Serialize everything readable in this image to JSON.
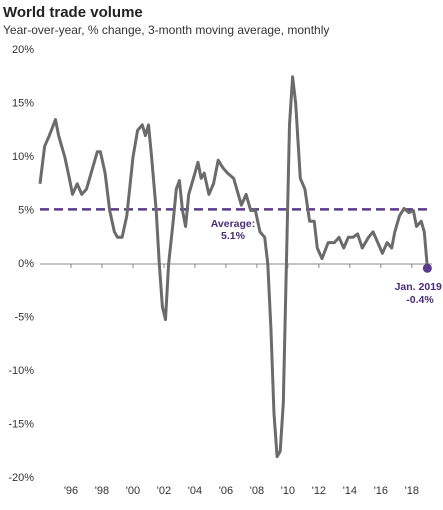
{
  "chart_data": {
    "type": "line",
    "title": "World trade volume",
    "subtitle": "Year-over-year, % change, 3-month moving average, monthly",
    "x": [
      1994.0,
      1994.3,
      1994.6,
      1995.0,
      1995.2,
      1995.6,
      1995.9,
      1996.1,
      1996.4,
      1996.7,
      1997.0,
      1997.4,
      1997.7,
      1997.9,
      1998.2,
      1998.5,
      1998.8,
      1999.0,
      1999.3,
      1999.6,
      2000.0,
      2000.3,
      2000.6,
      2000.8,
      2001.0,
      2001.2,
      2001.5,
      2001.7,
      2001.9,
      2002.1,
      2002.3,
      2002.6,
      2002.8,
      2003.0,
      2003.2,
      2003.4,
      2003.6,
      2003.9,
      2004.2,
      2004.4,
      2004.6,
      2004.9,
      2005.2,
      2005.5,
      2005.8,
      2006.1,
      2006.5,
      2006.8,
      2007.0,
      2007.3,
      2007.6,
      2007.9,
      2008.2,
      2008.5,
      2008.7,
      2008.9,
      2009.1,
      2009.3,
      2009.5,
      2009.7,
      2009.9,
      2010.1,
      2010.3,
      2010.5,
      2010.8,
      2011.1,
      2011.4,
      2011.7,
      2011.9,
      2012.2,
      2012.6,
      2013.0,
      2013.3,
      2013.6,
      2013.9,
      2014.2,
      2014.5,
      2014.8,
      2015.2,
      2015.5,
      2015.8,
      2016.1,
      2016.4,
      2016.7,
      2016.9,
      2017.2,
      2017.5,
      2017.8,
      2018.1,
      2018.3,
      2018.6,
      2018.8,
      2019.0
    ],
    "series": [
      {
        "color": "#6b6b6b",
        "values": [
          7.5,
          11,
          12,
          13.5,
          12,
          10,
          8,
          6.5,
          7.5,
          6.5,
          7,
          9,
          10.5,
          10.5,
          8.5,
          5,
          3,
          2.5,
          2.5,
          4.5,
          10,
          12.5,
          13,
          12,
          13,
          10,
          5,
          0,
          -4,
          -5.2,
          0,
          4,
          7,
          7.8,
          5,
          3.5,
          6.5,
          8,
          9.5,
          8,
          8.5,
          6.5,
          7.5,
          9.7,
          9,
          8.5,
          8,
          6.5,
          5.5,
          6.5,
          5,
          5,
          3,
          2.5,
          0,
          -6,
          -14,
          -18,
          -17.5,
          -13,
          0,
          13,
          17.5,
          15,
          8,
          7,
          4,
          4,
          1.5,
          0.5,
          2,
          2,
          2.5,
          1.5,
          2.5,
          2.5,
          2.8,
          1.5,
          2.5,
          3,
          2,
          1,
          2,
          1.5,
          3,
          4.5,
          5.2,
          4.8,
          5,
          3.5,
          4,
          3,
          -0.4
        ]
      }
    ],
    "average": 5.1,
    "average_color": "#5b3a8c",
    "average_label": [
      "Average:",
      "5.1%"
    ],
    "end_label": [
      "Jan. 2019:",
      "-0.4%"
    ],
    "xlim": [
      1994.0,
      2019.3
    ],
    "xticks": [
      {
        "value": 1996,
        "label": "'96"
      },
      {
        "value": 1998,
        "label": "'98"
      },
      {
        "value": 2000,
        "label": "'00"
      },
      {
        "value": 2002,
        "label": "'02"
      },
      {
        "value": 2004,
        "label": "'04"
      },
      {
        "value": 2006,
        "label": "'06"
      },
      {
        "value": 2008,
        "label": "'08"
      },
      {
        "value": 2010,
        "label": "'10"
      },
      {
        "value": 2012,
        "label": "'12"
      },
      {
        "value": 2014,
        "label": "'14"
      },
      {
        "value": 2016,
        "label": "'16"
      },
      {
        "value": 2018,
        "label": "'18"
      }
    ],
    "ylim": [
      -20,
      20
    ],
    "yticks": [
      {
        "value": 20,
        "label": "20%"
      },
      {
        "value": 15,
        "label": "15%"
      },
      {
        "value": 10,
        "label": "10%"
      },
      {
        "value": 5,
        "label": "5%"
      },
      {
        "value": 0,
        "label": "0%"
      },
      {
        "value": -5,
        "label": "-5%"
      },
      {
        "value": -10,
        "label": "-10%"
      },
      {
        "value": -15,
        "label": "-15%"
      },
      {
        "value": -20,
        "label": "-20%"
      }
    ]
  }
}
